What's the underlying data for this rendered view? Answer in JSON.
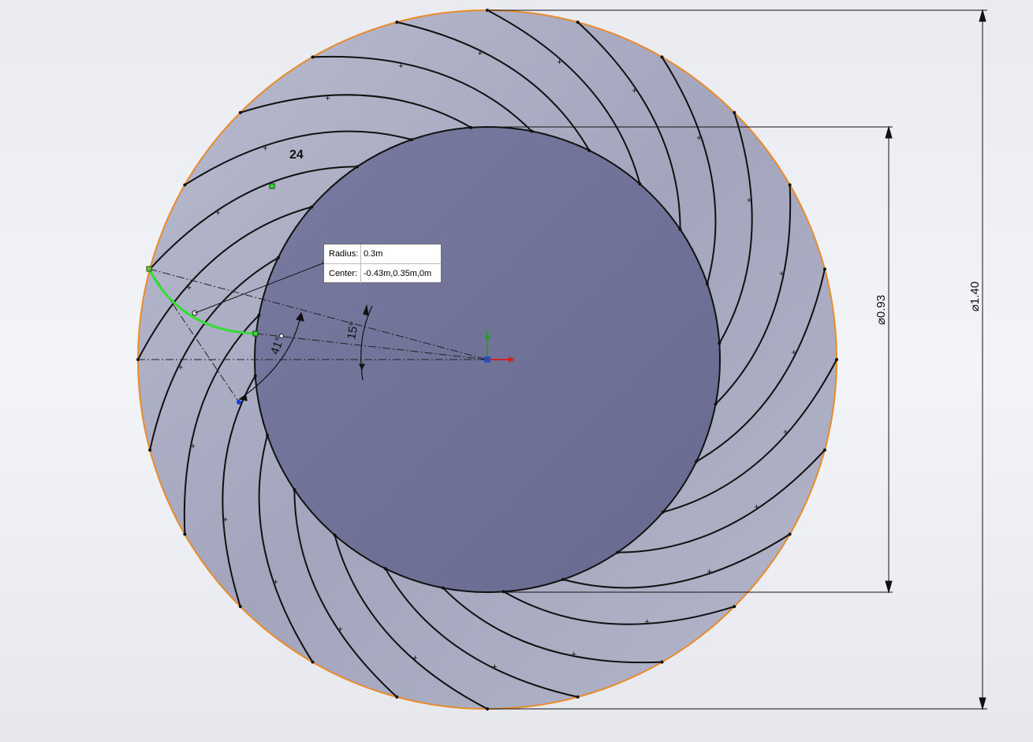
{
  "viewport": {
    "blade_count_label": "24",
    "angle_label_1": "15°",
    "angle_label_2": "41°",
    "outer_diameter_label": "⌀1.40",
    "inner_diameter_label": "⌀0.93",
    "origin_axis_x": "X",
    "origin_axis_y": "Y"
  },
  "tooltip": {
    "radius_label": "Radius:",
    "radius_value": "0.3m",
    "center_label": "Center:",
    "center_value": "-0.43m,0.35m,0m"
  },
  "colors": {
    "ring_fill": "#a9abc2",
    "hub_fill": "#6c6e95",
    "outline_orange": "#e98b2a",
    "selected_arc": "#33dd33",
    "blade_line": "#111111"
  }
}
